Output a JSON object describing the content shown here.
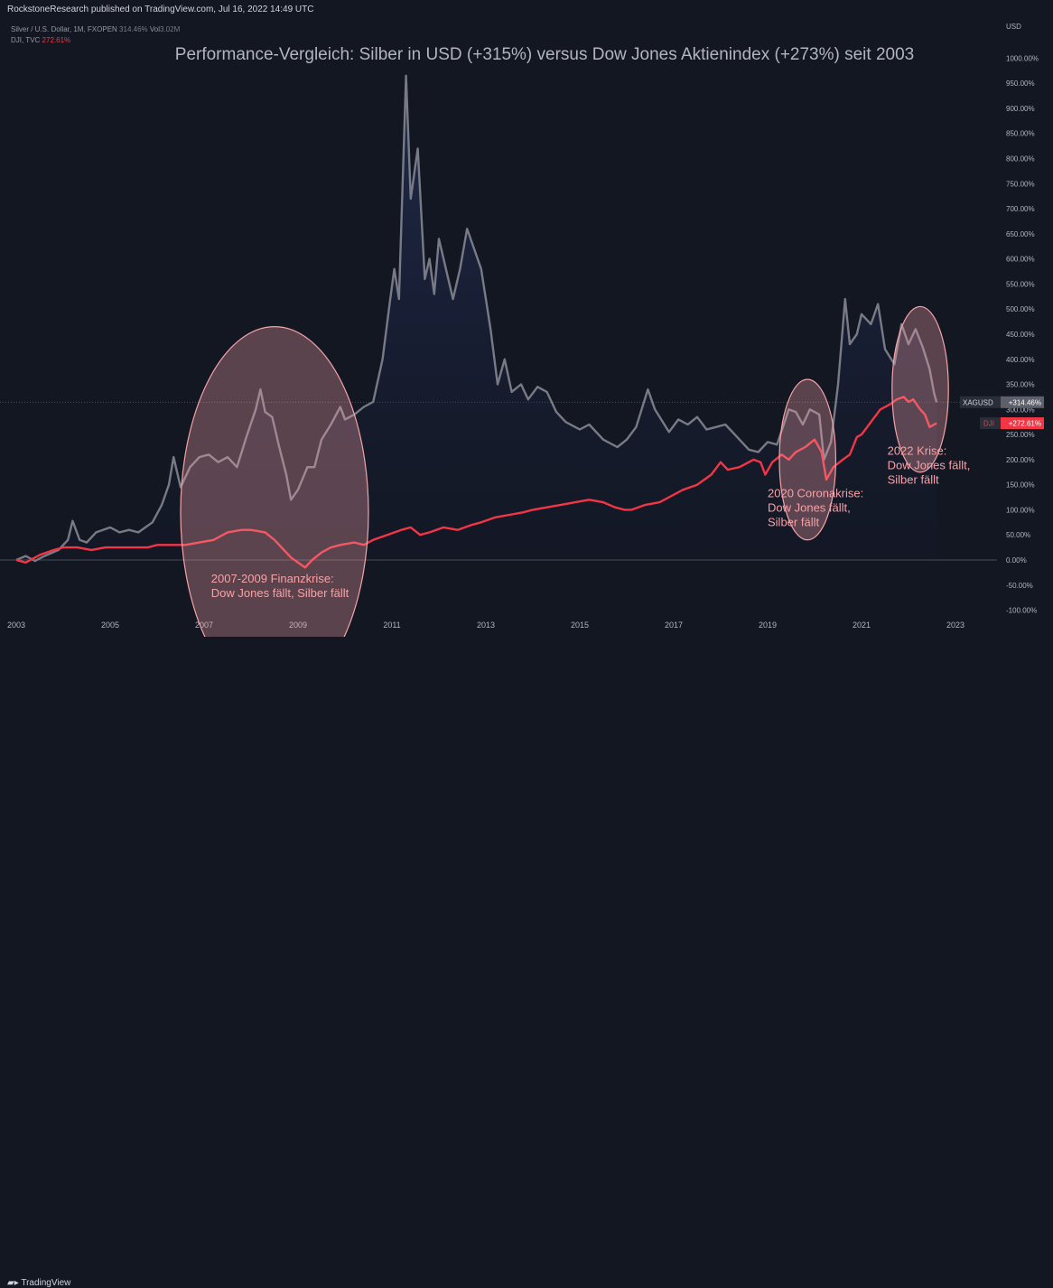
{
  "header": {
    "publisher": "RockstoneResearch published on TradingView.com, Jul 16, 2022 14:49 UTC"
  },
  "legend": {
    "silver_name": "Silver / U.S. Dollar, 1M, FXOPEN",
    "silver_value": "314.46%",
    "silver_vol_label": "Vol",
    "silver_vol_value": "3.02M",
    "dji_name": "DJI, TVC",
    "dji_value": "272.61%"
  },
  "axis": {
    "currency": "USD"
  },
  "footer": {
    "brand": "TradingView"
  },
  "colors": {
    "background": "#131722",
    "silver": "#787b86",
    "dji": "#f23645",
    "ellipse": "#f5a3a8"
  },
  "chart_data": {
    "type": "line",
    "title": "Performance-Vergleich: Silber in USD (+315%) versus Dow Jones Aktienindex (+273%) seit 2003",
    "xlabel": "",
    "ylabel": "",
    "x_ticks": [
      "2003",
      "2005",
      "2007",
      "2009",
      "2011",
      "2013",
      "2015",
      "2017",
      "2019",
      "2021",
      "2023"
    ],
    "y_ticks": [
      "1000.00%",
      "950.00%",
      "900.00%",
      "850.00%",
      "800.00%",
      "750.00%",
      "700.00%",
      "650.00%",
      "600.00%",
      "550.00%",
      "500.00%",
      "450.00%",
      "400.00%",
      "350.00%",
      "300.00%",
      "250.00%",
      "200.00%",
      "150.00%",
      "100.00%",
      "50.00%",
      "0.00%",
      "-50.00%",
      "-100.00%"
    ],
    "ylim": [
      -100,
      1000
    ],
    "grid": false,
    "series": [
      {
        "name": "XAGUSD",
        "last_label": "+314.46%",
        "points": [
          [
            2003.0,
            0
          ],
          [
            2003.2,
            8
          ],
          [
            2003.4,
            -2
          ],
          [
            2003.6,
            8
          ],
          [
            2003.9,
            20
          ],
          [
            2004.1,
            40
          ],
          [
            2004.2,
            78
          ],
          [
            2004.35,
            40
          ],
          [
            2004.5,
            35
          ],
          [
            2004.7,
            55
          ],
          [
            2005.0,
            65
          ],
          [
            2005.2,
            55
          ],
          [
            2005.4,
            60
          ],
          [
            2005.6,
            55
          ],
          [
            2005.9,
            75
          ],
          [
            2006.1,
            110
          ],
          [
            2006.25,
            150
          ],
          [
            2006.35,
            205
          ],
          [
            2006.5,
            145
          ],
          [
            2006.7,
            185
          ],
          [
            2006.9,
            205
          ],
          [
            2007.1,
            210
          ],
          [
            2007.3,
            195
          ],
          [
            2007.5,
            205
          ],
          [
            2007.7,
            185
          ],
          [
            2007.9,
            245
          ],
          [
            2008.1,
            300
          ],
          [
            2008.2,
            340
          ],
          [
            2008.3,
            295
          ],
          [
            2008.45,
            285
          ],
          [
            2008.6,
            225
          ],
          [
            2008.75,
            170
          ],
          [
            2008.85,
            120
          ],
          [
            2009.0,
            140
          ],
          [
            2009.2,
            185
          ],
          [
            2009.35,
            185
          ],
          [
            2009.5,
            240
          ],
          [
            2009.7,
            270
          ],
          [
            2009.9,
            305
          ],
          [
            2010.0,
            280
          ],
          [
            2010.2,
            290
          ],
          [
            2010.4,
            305
          ],
          [
            2010.6,
            315
          ],
          [
            2010.8,
            400
          ],
          [
            2010.95,
            510
          ],
          [
            2011.05,
            580
          ],
          [
            2011.15,
            520
          ],
          [
            2011.3,
            965
          ],
          [
            2011.4,
            720
          ],
          [
            2011.55,
            820
          ],
          [
            2011.7,
            560
          ],
          [
            2011.8,
            600
          ],
          [
            2011.9,
            530
          ],
          [
            2012.0,
            640
          ],
          [
            2012.15,
            580
          ],
          [
            2012.3,
            520
          ],
          [
            2012.45,
            580
          ],
          [
            2012.6,
            660
          ],
          [
            2012.75,
            620
          ],
          [
            2012.9,
            580
          ],
          [
            2013.1,
            460
          ],
          [
            2013.25,
            350
          ],
          [
            2013.4,
            400
          ],
          [
            2013.55,
            335
          ],
          [
            2013.75,
            350
          ],
          [
            2013.9,
            320
          ],
          [
            2014.1,
            345
          ],
          [
            2014.3,
            335
          ],
          [
            2014.5,
            295
          ],
          [
            2014.7,
            275
          ],
          [
            2015.0,
            260
          ],
          [
            2015.2,
            270
          ],
          [
            2015.5,
            240
          ],
          [
            2015.8,
            225
          ],
          [
            2016.0,
            240
          ],
          [
            2016.2,
            265
          ],
          [
            2016.45,
            340
          ],
          [
            2016.6,
            300
          ],
          [
            2016.9,
            255
          ],
          [
            2017.1,
            280
          ],
          [
            2017.3,
            270
          ],
          [
            2017.5,
            285
          ],
          [
            2017.7,
            260
          ],
          [
            2017.9,
            265
          ],
          [
            2018.1,
            270
          ],
          [
            2018.3,
            250
          ],
          [
            2018.6,
            220
          ],
          [
            2018.8,
            215
          ],
          [
            2019.0,
            235
          ],
          [
            2019.2,
            230
          ],
          [
            2019.45,
            300
          ],
          [
            2019.6,
            295
          ],
          [
            2019.75,
            270
          ],
          [
            2019.9,
            300
          ],
          [
            2020.1,
            290
          ],
          [
            2020.2,
            200
          ],
          [
            2020.35,
            235
          ],
          [
            2020.5,
            350
          ],
          [
            2020.65,
            520
          ],
          [
            2020.75,
            430
          ],
          [
            2020.9,
            450
          ],
          [
            2021.0,
            490
          ],
          [
            2021.2,
            470
          ],
          [
            2021.35,
            510
          ],
          [
            2021.5,
            420
          ],
          [
            2021.7,
            390
          ],
          [
            2021.85,
            470
          ],
          [
            2022.0,
            430
          ],
          [
            2022.15,
            460
          ],
          [
            2022.3,
            425
          ],
          [
            2022.45,
            380
          ],
          [
            2022.55,
            330
          ],
          [
            2022.6,
            314.46
          ]
        ]
      },
      {
        "name": "DJI",
        "last_label": "+272.61%",
        "points": [
          [
            2003.0,
            0
          ],
          [
            2003.2,
            -5
          ],
          [
            2003.5,
            10
          ],
          [
            2003.8,
            20
          ],
          [
            2004.0,
            25
          ],
          [
            2004.3,
            25
          ],
          [
            2004.6,
            20
          ],
          [
            2004.9,
            25
          ],
          [
            2005.2,
            25
          ],
          [
            2005.5,
            25
          ],
          [
            2005.8,
            25
          ],
          [
            2006.0,
            30
          ],
          [
            2006.3,
            30
          ],
          [
            2006.6,
            30
          ],
          [
            2006.9,
            35
          ],
          [
            2007.2,
            40
          ],
          [
            2007.5,
            55
          ],
          [
            2007.8,
            60
          ],
          [
            2008.0,
            60
          ],
          [
            2008.3,
            55
          ],
          [
            2008.5,
            40
          ],
          [
            2008.7,
            20
          ],
          [
            2008.85,
            5
          ],
          [
            2009.0,
            -5
          ],
          [
            2009.15,
            -15
          ],
          [
            2009.3,
            0
          ],
          [
            2009.5,
            15
          ],
          [
            2009.7,
            25
          ],
          [
            2009.9,
            30
          ],
          [
            2010.2,
            35
          ],
          [
            2010.4,
            30
          ],
          [
            2010.6,
            40
          ],
          [
            2010.9,
            50
          ],
          [
            2011.2,
            60
          ],
          [
            2011.4,
            65
          ],
          [
            2011.6,
            50
          ],
          [
            2011.8,
            55
          ],
          [
            2012.1,
            65
          ],
          [
            2012.4,
            60
          ],
          [
            2012.7,
            70
          ],
          [
            2012.9,
            75
          ],
          [
            2013.2,
            85
          ],
          [
            2013.5,
            90
          ],
          [
            2013.8,
            95
          ],
          [
            2014.0,
            100
          ],
          [
            2014.3,
            105
          ],
          [
            2014.6,
            110
          ],
          [
            2014.9,
            115
          ],
          [
            2015.2,
            120
          ],
          [
            2015.5,
            115
          ],
          [
            2015.75,
            105
          ],
          [
            2015.95,
            100
          ],
          [
            2016.1,
            100
          ],
          [
            2016.4,
            110
          ],
          [
            2016.7,
            115
          ],
          [
            2016.9,
            125
          ],
          [
            2017.2,
            140
          ],
          [
            2017.5,
            150
          ],
          [
            2017.8,
            170
          ],
          [
            2018.0,
            195
          ],
          [
            2018.15,
            180
          ],
          [
            2018.4,
            185
          ],
          [
            2018.7,
            200
          ],
          [
            2018.85,
            195
          ],
          [
            2018.95,
            170
          ],
          [
            2019.1,
            195
          ],
          [
            2019.3,
            210
          ],
          [
            2019.45,
            200
          ],
          [
            2019.6,
            215
          ],
          [
            2019.8,
            225
          ],
          [
            2020.0,
            240
          ],
          [
            2020.15,
            215
          ],
          [
            2020.25,
            160
          ],
          [
            2020.4,
            185
          ],
          [
            2020.6,
            200
          ],
          [
            2020.75,
            210
          ],
          [
            2020.9,
            245
          ],
          [
            2021.0,
            250
          ],
          [
            2021.2,
            275
          ],
          [
            2021.4,
            300
          ],
          [
            2021.6,
            310
          ],
          [
            2021.75,
            320
          ],
          [
            2021.9,
            325
          ],
          [
            2022.0,
            315
          ],
          [
            2022.1,
            320
          ],
          [
            2022.25,
            300
          ],
          [
            2022.35,
            290
          ],
          [
            2022.45,
            265
          ],
          [
            2022.6,
            272.61
          ]
        ]
      }
    ],
    "annotations": [
      {
        "text_lines": [
          "2007-2009 Finanzkrise:",
          "Dow Jones fällt, Silber fällt"
        ]
      },
      {
        "text_lines": [
          "2020 Coronakrise:",
          "Dow Jones fällt,",
          "Silber fällt"
        ]
      },
      {
        "text_lines": [
          "2022 Krise:",
          "Dow Jones fällt,",
          "Silber fällt"
        ]
      }
    ]
  }
}
